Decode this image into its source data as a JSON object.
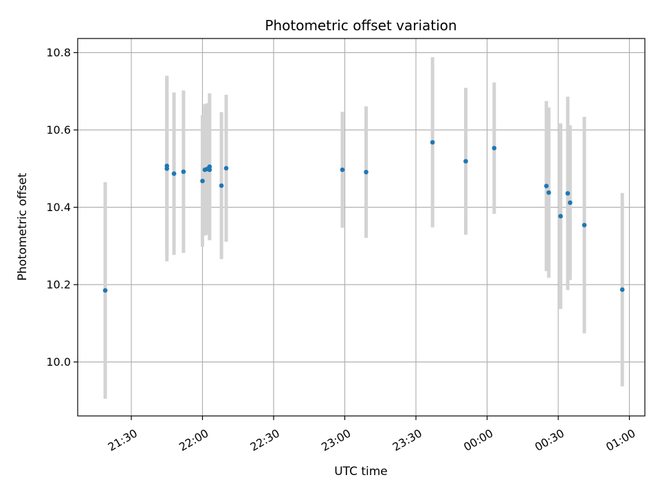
{
  "chart_data": {
    "type": "scatter",
    "title": "Photometric offset variation",
    "xlabel": "UTC time",
    "ylabel": "Photometric offset",
    "x_tick_labels": [
      "21:30",
      "22:00",
      "22:30",
      "23:00",
      "23:30",
      "00:00",
      "00:30",
      "01:00"
    ],
    "y_tick_labels": [
      "10.0",
      "10.2",
      "10.4",
      "10.6",
      "10.8"
    ],
    "grid": true,
    "colors": {
      "points": "#1f77b4",
      "errorbars": "#d3d3d3",
      "grid": "#b0b0b0"
    },
    "series": [
      {
        "x": [
          "21:19",
          "21:45",
          "21:45",
          "21:48",
          "21:52",
          "22:00",
          "22:01",
          "22:02",
          "22:03",
          "22:03",
          "22:08",
          "22:10",
          "22:59",
          "23:09",
          "23:37",
          "23:51",
          "00:03",
          "00:25",
          "00:26",
          "00:31",
          "00:34",
          "00:35",
          "00:41",
          "00:57"
        ],
        "y": [
          10.185,
          10.5,
          10.507,
          10.487,
          10.492,
          10.468,
          10.497,
          10.499,
          10.497,
          10.505,
          10.456,
          10.501,
          10.497,
          10.491,
          10.568,
          10.519,
          10.553,
          10.455,
          10.438,
          10.377,
          10.436,
          10.412,
          10.354,
          10.187
        ],
        "y_err": [
          0.28,
          0.24,
          0.23,
          0.21,
          0.21,
          0.17,
          0.17,
          0.17,
          0.18,
          0.19,
          0.19,
          0.19,
          0.15,
          0.17,
          0.22,
          0.19,
          0.17,
          0.22,
          0.22,
          0.24,
          0.25,
          0.2,
          0.28,
          0.25
        ]
      }
    ]
  }
}
